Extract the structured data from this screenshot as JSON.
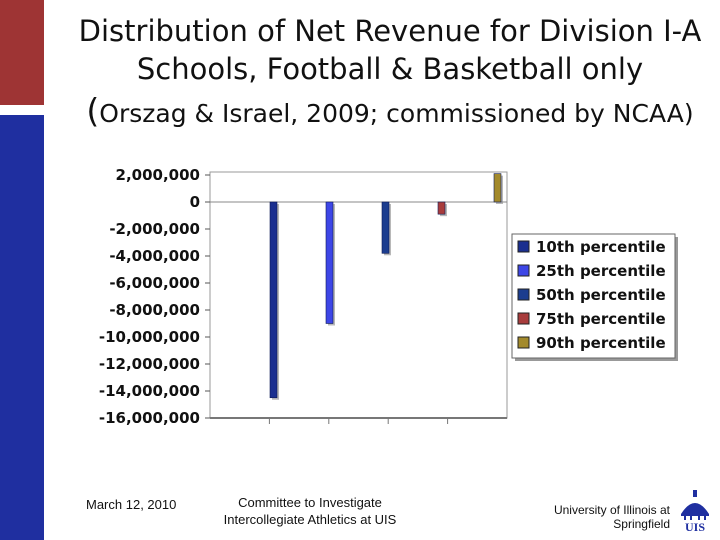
{
  "title": {
    "line1": "Distribution of Net Revenue for Division I-A Schools, Football & Basketball only",
    "line2_paren_open": "(",
    "line2_rest": "Orszag & Israel, 2009; commissioned by NCAA)"
  },
  "footer": {
    "date": "March 12, 2010",
    "committee": "Committee to Investigate Intercollegiate Athletics at UIS",
    "university": "University of Illinois at Springfield",
    "logo_text": "UIS"
  },
  "colors": {
    "accent_red": "#9e3434",
    "accent_blue": "#1f2fa0"
  },
  "chart_data": {
    "type": "bar",
    "title": "",
    "xlabel": "",
    "ylabel": "",
    "ylim": [
      -16000000,
      2000000
    ],
    "yticks": [
      2000000,
      0,
      -2000000,
      -4000000,
      -6000000,
      -8000000,
      -10000000,
      -12000000,
      -14000000,
      -16000000
    ],
    "ytick_labels": [
      "2,000,000",
      "0",
      "-2,000,000",
      "-4,000,000",
      "-6,000,000",
      "-8,000,000",
      "-10,000,000",
      "-12,000,000",
      "-14,000,000",
      "-16,000,000"
    ],
    "grid": false,
    "legend_position": "right",
    "series": [
      {
        "name": "10th percentile",
        "value": -14500000,
        "color": "#1b2f8f"
      },
      {
        "name": "25th percentile",
        "value": -9000000,
        "color": "#3d46e6"
      },
      {
        "name": "50th percentile",
        "value": -3800000,
        "color": "#1c3d8f"
      },
      {
        "name": "75th percentile",
        "value": -900000,
        "color": "#a83c3c"
      },
      {
        "name": "90th percentile",
        "value": 2100000,
        "color": "#a38a2c"
      }
    ]
  }
}
